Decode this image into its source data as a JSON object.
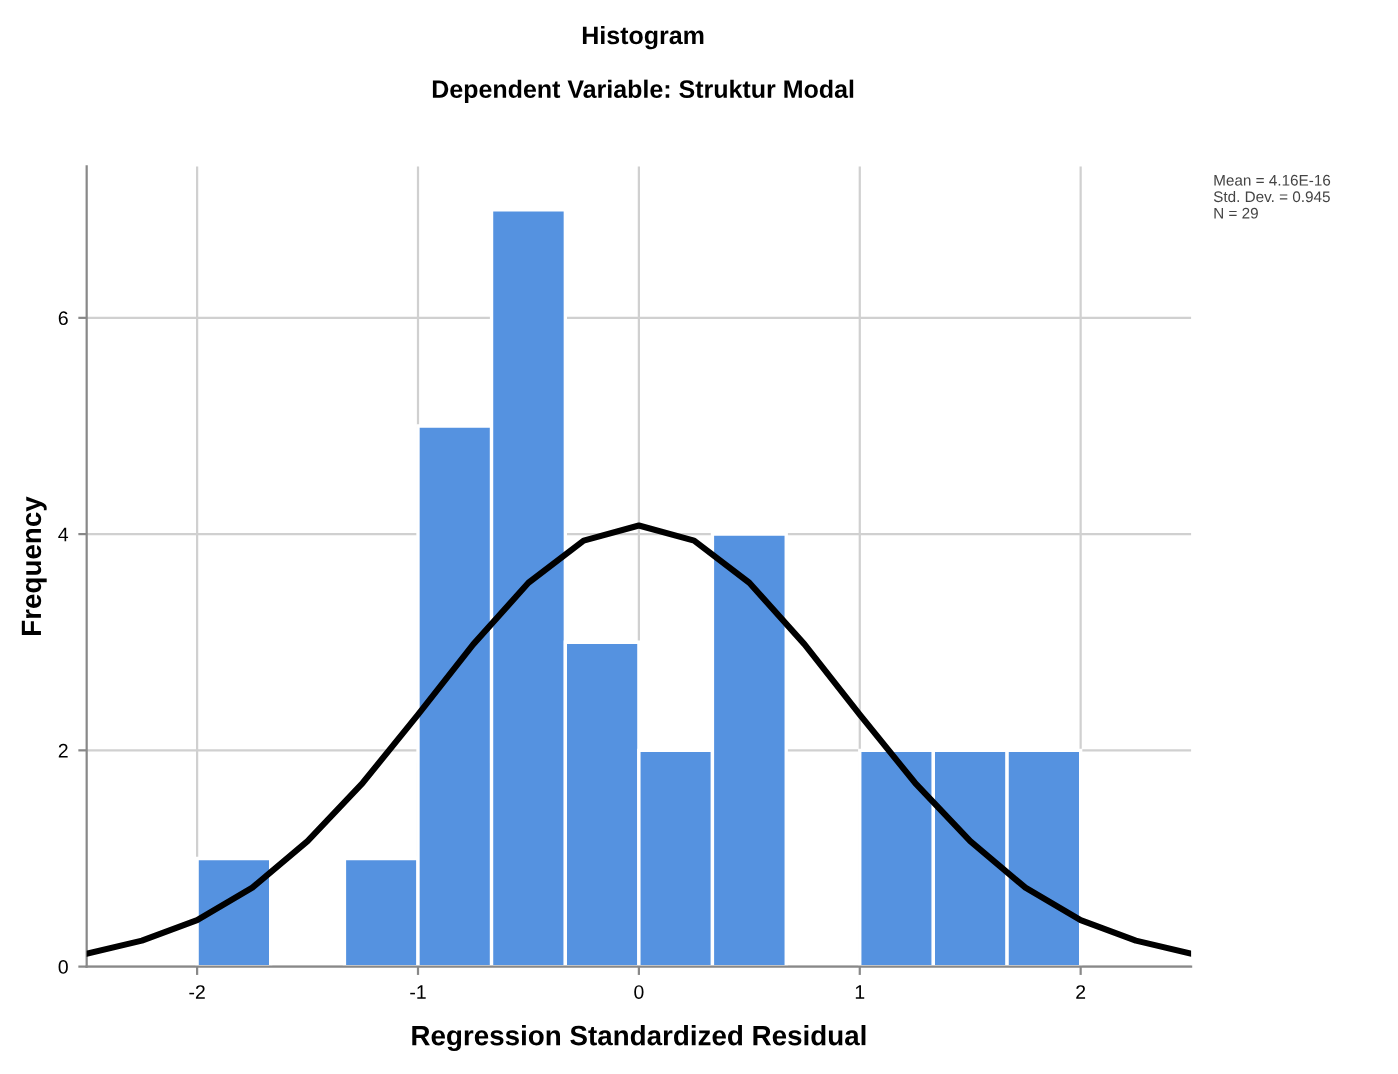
{
  "chart_data": {
    "type": "histogram",
    "title": "Histogram",
    "subtitle": "Dependent Variable: Struktur Modal",
    "xlabel": "Regression Standardized Residual",
    "ylabel": "Frequency",
    "annotations": [
      "Mean = 4.16E-16",
      "Std. Dev. = 0.945",
      "N = 29"
    ],
    "series": [
      {
        "color": "#5592e0",
        "bins": [
          -2,
          -1.667,
          -1.333,
          -1,
          -0.667,
          -0.333,
          0,
          0.333,
          0.667,
          1,
          1.333,
          1.667,
          2
        ],
        "values": [
          1,
          0,
          1,
          5,
          7,
          3,
          2,
          4,
          0,
          2,
          2,
          2
        ]
      },
      {
        "type": "line",
        "color": "#000000",
        "x": [
          -2.5,
          -2.25,
          -2,
          -1.75,
          -1.5,
          -1.25,
          -1,
          -0.75,
          -0.5,
          -0.25,
          0,
          0.25,
          0.5,
          0.75,
          1,
          1.25,
          1.5,
          1.75,
          2,
          2.25,
          2.5
        ],
        "values": [
          0.12,
          0.24,
          0.43,
          0.73,
          1.16,
          1.7,
          2.33,
          2.98,
          3.55,
          3.94,
          4.08,
          3.94,
          3.55,
          2.98,
          2.33,
          1.7,
          1.16,
          0.73,
          0.43,
          0.24,
          0.12
        ]
      }
    ],
    "xlim": [
      -2.5,
      2.5
    ],
    "ylim": [
      0,
      7.4
    ],
    "xticks": [
      -2,
      -1,
      0,
      1,
      2
    ],
    "yticks": [
      0,
      2,
      4,
      6
    ],
    "grid": true
  }
}
